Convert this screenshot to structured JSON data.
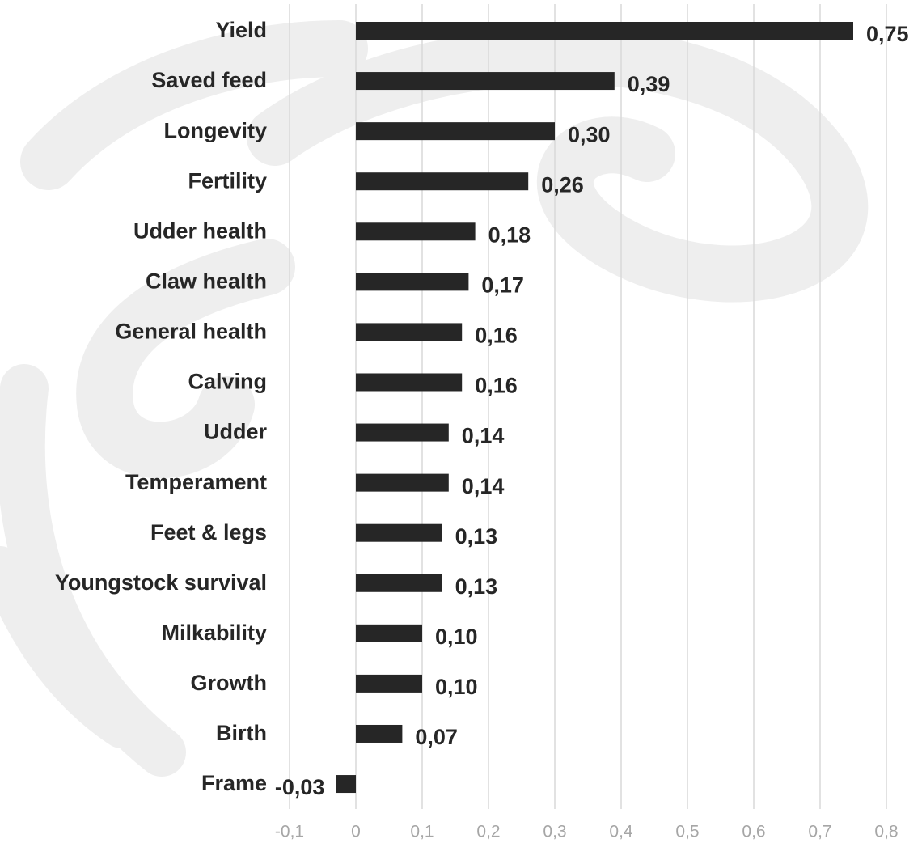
{
  "chart_data": {
    "type": "hbar",
    "categories": [
      "Yield",
      "Saved feed",
      "Longevity",
      "Fertility",
      "Udder health",
      "Claw health",
      "General health",
      "Calving",
      "Udder",
      "Temperament",
      "Feet & legs",
      "Youngstock survival",
      "Milkability",
      "Growth",
      "Birth",
      "Frame"
    ],
    "values": [
      0.75,
      0.39,
      0.3,
      0.26,
      0.18,
      0.17,
      0.16,
      0.16,
      0.14,
      0.14,
      0.13,
      0.13,
      0.1,
      0.1,
      0.07,
      -0.03
    ],
    "value_labels": [
      "0,75",
      "0,39",
      "0,30",
      "0,26",
      "0,18",
      "0,17",
      "0,16",
      "0,16",
      "0,14",
      "0,14",
      "0,13",
      "0,13",
      "0,10",
      "0,10",
      "0,07",
      "-0,03"
    ],
    "color": "#262626",
    "xlim": [
      -0.1,
      0.8
    ],
    "xticks": [
      {
        "value": -0.1,
        "label": "-0,1"
      },
      0,
      {
        "value": 0.1,
        "label": "0,1"
      },
      {
        "value": 0.2,
        "label": "0,2"
      },
      {
        "value": 0.3,
        "label": "0,3"
      },
      {
        "value": 0.4,
        "label": "0,4"
      },
      {
        "value": 0.5,
        "label": "0,5"
      },
      {
        "value": 0.6,
        "label": "0,6"
      },
      {
        "value": 0.7,
        "label": "0,7"
      },
      {
        "value": 0.8,
        "label": "0,8"
      }
    ],
    "grid": true
  }
}
